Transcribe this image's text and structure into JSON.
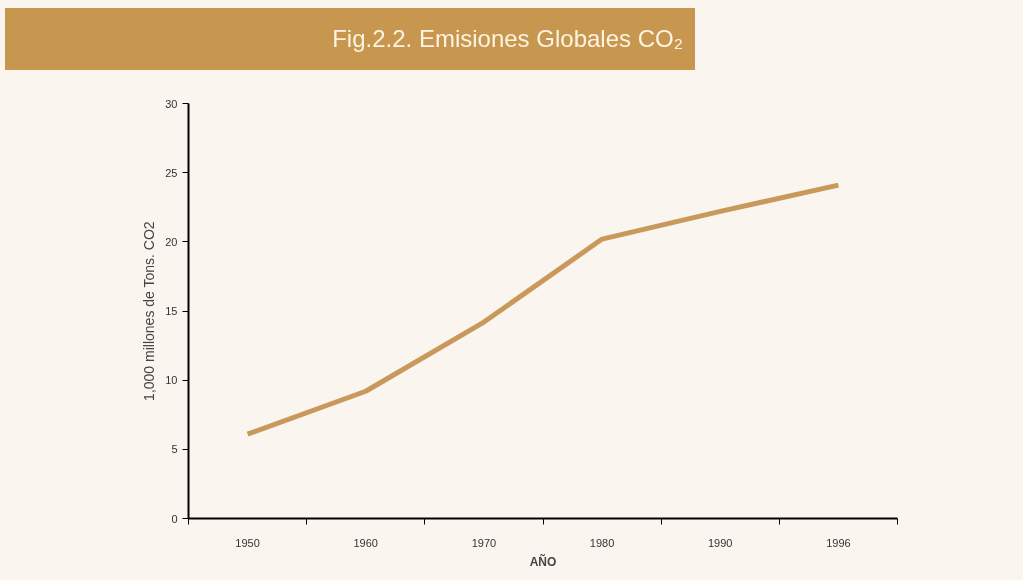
{
  "chart_data": {
    "type": "line",
    "title": "Fig.2.2. Emisiones Globales CO₂",
    "xlabel": "AÑO",
    "ylabel": "1,000 millones de Tons. CO2",
    "categories": [
      "1950",
      "1960",
      "1970",
      "1980",
      "1990",
      "1996"
    ],
    "series": [
      {
        "color": "#c8995a",
        "values": [
          6.1,
          9.2,
          14.2,
          20.2,
          22.2,
          24.1
        ]
      }
    ],
    "ylim": [
      0,
      30
    ],
    "yticks": [
      0,
      5,
      10,
      15,
      20,
      25,
      30
    ],
    "grid": false,
    "marker": "none",
    "line_style": "solid"
  }
}
